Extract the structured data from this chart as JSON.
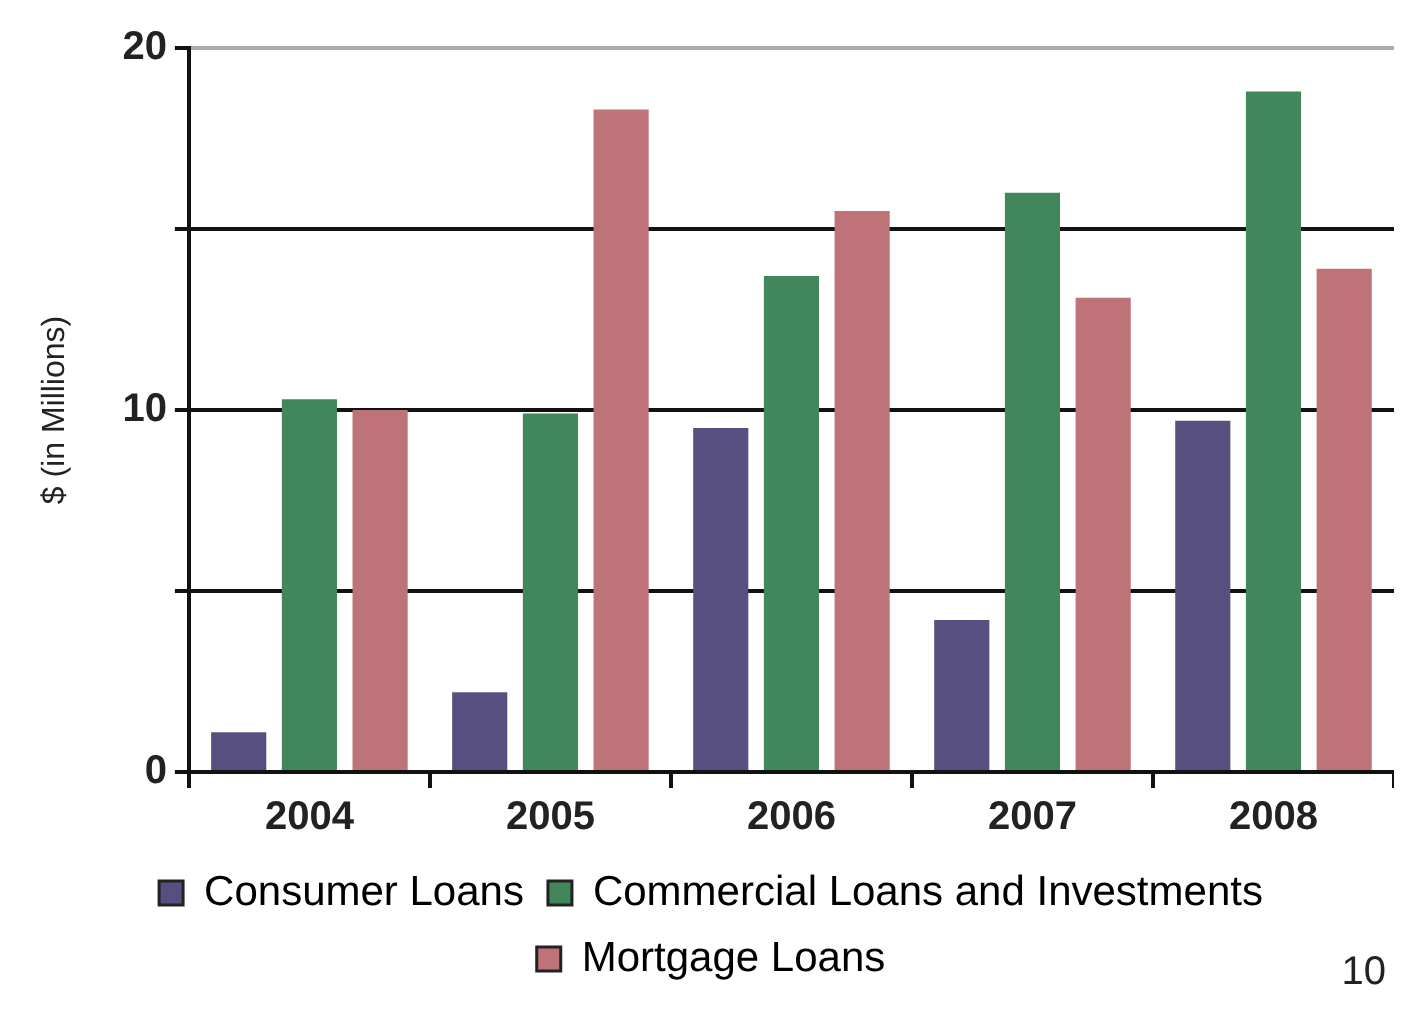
{
  "chart_data": {
    "type": "bar",
    "ylabel": "$ (in Millions)",
    "categories": [
      "2004",
      "2005",
      "2006",
      "2007",
      "2008"
    ],
    "series": [
      {
        "name": "Consumer Loans",
        "color": "#574f80",
        "values": [
          1.1,
          2.2,
          9.5,
          4.2,
          9.7
        ]
      },
      {
        "name": "Commercial Loans and Investments",
        "color": "#42875c",
        "values": [
          10.3,
          9.9,
          13.7,
          16.0,
          18.8
        ]
      },
      {
        "name": "Mortgage Loans",
        "color": "#be7378",
        "values": [
          10.0,
          18.3,
          15.5,
          13.1,
          13.9
        ]
      }
    ],
    "ylim": [
      0,
      20
    ],
    "yticks": [
      {
        "value": 0,
        "label": "0"
      },
      {
        "value": 5,
        "label": null
      },
      {
        "value": 10,
        "label": "10"
      },
      {
        "value": 15,
        "label": null
      },
      {
        "value": 20,
        "label": "20"
      }
    ],
    "grid": "y",
    "legend": "bottom",
    "annotations": [
      "10"
    ]
  }
}
